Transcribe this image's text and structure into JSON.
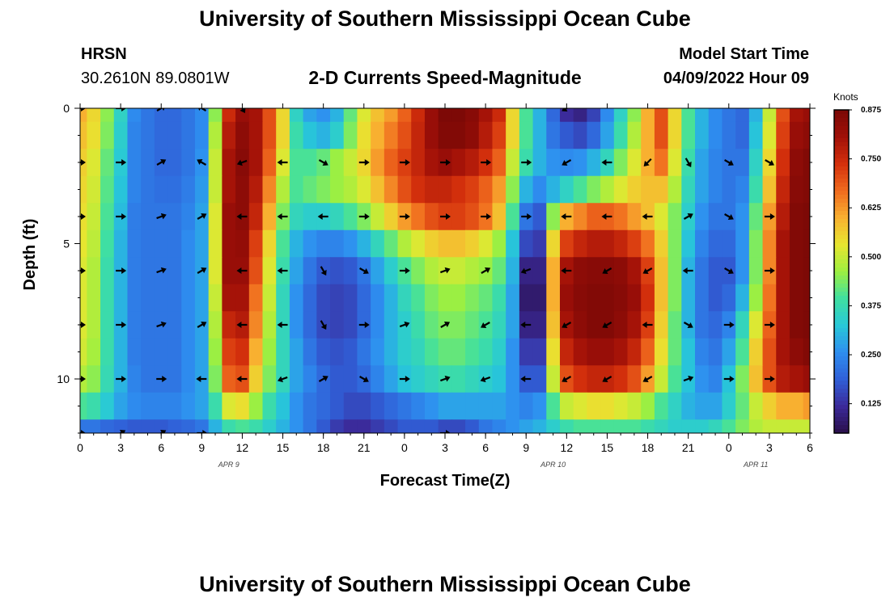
{
  "header": {
    "title": "University of Southern Mississippi Ocean Cube",
    "station": "HRSN",
    "coords": "30.2610N  89.0801W",
    "subtitle": "2-D Currents Speed-Magnitude",
    "start_label": "Model Start Time",
    "start_value": "04/09/2022 Hour 09"
  },
  "footer": {
    "title": "University of Southern Mississippi Ocean Cube"
  },
  "colors": {
    "palette": [
      "#2a0f4a",
      "#3b2a9a",
      "#3060d8",
      "#2e8ff0",
      "#28c8d8",
      "#40e0a0",
      "#9ef040",
      "#e8e630",
      "#f8b030",
      "#f06a1e",
      "#d4300c",
      "#a01008",
      "#7a0806"
    ]
  },
  "chart_data": {
    "type": "heatmap",
    "title": "2-D Currents Speed-Magnitude",
    "xlabel": "Forecast Time(Z)",
    "ylabel": "Depth (ft)",
    "x_ticks": [
      "0",
      "3",
      "6",
      "9",
      "12",
      "15",
      "18",
      "21",
      "0",
      "3",
      "6",
      "9",
      "12",
      "15",
      "18",
      "21",
      "0",
      "3",
      "6"
    ],
    "x_hours": [
      0,
      54
    ],
    "date_labels": [
      {
        "label": "APR 9",
        "hour": 11
      },
      {
        "label": "APR 10",
        "hour": 35
      },
      {
        "label": "APR 11",
        "hour": 50
      }
    ],
    "y_ticks": [
      "0",
      "5",
      "10"
    ],
    "y_tick_values": [
      0,
      5,
      10
    ],
    "ylim": [
      0,
      12
    ],
    "colorbar": {
      "label": "Knots",
      "min": 0.05,
      "max": 0.875,
      "ticks": [
        "0.875",
        "0.750",
        "0.625",
        "0.500",
        "0.375",
        "0.250",
        "0.125"
      ],
      "tick_values": [
        0.875,
        0.75,
        0.625,
        0.5,
        0.375,
        0.25,
        0.125
      ]
    },
    "column_hours": [
      0,
      1,
      2,
      3,
      4,
      5,
      6,
      7,
      8,
      9,
      10,
      11,
      12,
      13,
      14,
      15,
      16,
      17,
      18,
      19,
      20,
      21,
      22,
      23,
      24,
      25,
      26,
      27,
      28,
      29,
      30,
      31,
      32,
      33,
      34,
      35,
      36,
      37,
      38,
      39,
      40,
      41,
      42,
      43,
      44,
      45,
      46,
      47,
      48,
      49,
      50,
      51,
      52,
      53,
      54
    ],
    "row_depths": [
      0,
      1,
      2,
      3,
      4,
      5,
      6,
      7,
      8,
      9,
      10,
      11,
      12
    ],
    "speed_grid": [
      [
        0.6,
        0.55,
        0.45,
        0.35,
        0.25,
        0.22,
        0.2,
        0.2,
        0.22,
        0.25,
        0.45,
        0.75,
        0.82,
        0.8,
        0.7,
        0.55,
        0.35,
        0.28,
        0.26,
        0.3,
        0.42,
        0.52,
        0.58,
        0.62,
        0.68,
        0.75,
        0.82,
        0.87,
        0.87,
        0.85,
        0.8,
        0.75,
        0.55,
        0.4,
        0.3,
        0.2,
        0.12,
        0.1,
        0.15,
        0.25,
        0.35,
        0.45,
        0.6,
        0.7,
        0.55,
        0.4,
        0.3,
        0.25,
        0.22,
        0.2,
        0.3,
        0.5,
        0.7,
        0.8,
        0.82
      ],
      [
        0.58,
        0.54,
        0.44,
        0.34,
        0.24,
        0.22,
        0.2,
        0.2,
        0.22,
        0.25,
        0.48,
        0.78,
        0.84,
        0.8,
        0.7,
        0.55,
        0.38,
        0.32,
        0.3,
        0.34,
        0.44,
        0.54,
        0.6,
        0.65,
        0.7,
        0.76,
        0.82,
        0.86,
        0.86,
        0.84,
        0.78,
        0.72,
        0.55,
        0.4,
        0.3,
        0.22,
        0.18,
        0.16,
        0.2,
        0.28,
        0.38,
        0.48,
        0.6,
        0.7,
        0.55,
        0.4,
        0.3,
        0.25,
        0.22,
        0.2,
        0.32,
        0.52,
        0.72,
        0.82,
        0.84
      ],
      [
        0.56,
        0.52,
        0.42,
        0.33,
        0.24,
        0.22,
        0.2,
        0.2,
        0.22,
        0.26,
        0.5,
        0.8,
        0.85,
        0.8,
        0.68,
        0.52,
        0.4,
        0.4,
        0.42,
        0.46,
        0.5,
        0.55,
        0.62,
        0.68,
        0.72,
        0.76,
        0.8,
        0.82,
        0.8,
        0.78,
        0.74,
        0.68,
        0.5,
        0.38,
        0.3,
        0.26,
        0.25,
        0.26,
        0.3,
        0.36,
        0.44,
        0.52,
        0.6,
        0.66,
        0.52,
        0.38,
        0.28,
        0.24,
        0.22,
        0.22,
        0.35,
        0.55,
        0.74,
        0.84,
        0.86
      ],
      [
        0.55,
        0.51,
        0.41,
        0.32,
        0.24,
        0.22,
        0.21,
        0.21,
        0.23,
        0.27,
        0.5,
        0.8,
        0.84,
        0.78,
        0.64,
        0.48,
        0.4,
        0.42,
        0.44,
        0.46,
        0.48,
        0.52,
        0.58,
        0.64,
        0.7,
        0.74,
        0.76,
        0.76,
        0.74,
        0.72,
        0.68,
        0.62,
        0.45,
        0.3,
        0.25,
        0.3,
        0.35,
        0.4,
        0.44,
        0.48,
        0.52,
        0.56,
        0.58,
        0.58,
        0.48,
        0.36,
        0.28,
        0.24,
        0.22,
        0.24,
        0.38,
        0.58,
        0.76,
        0.85,
        0.86
      ],
      [
        0.54,
        0.5,
        0.4,
        0.31,
        0.23,
        0.22,
        0.22,
        0.22,
        0.24,
        0.28,
        0.52,
        0.82,
        0.84,
        0.76,
        0.6,
        0.44,
        0.36,
        0.34,
        0.34,
        0.36,
        0.4,
        0.44,
        0.5,
        0.56,
        0.62,
        0.66,
        0.7,
        0.72,
        0.72,
        0.7,
        0.66,
        0.58,
        0.4,
        0.22,
        0.18,
        0.45,
        0.6,
        0.64,
        0.68,
        0.68,
        0.66,
        0.62,
        0.58,
        0.52,
        0.44,
        0.34,
        0.26,
        0.22,
        0.22,
        0.26,
        0.42,
        0.62,
        0.78,
        0.86,
        0.87
      ],
      [
        0.53,
        0.49,
        0.39,
        0.3,
        0.23,
        0.22,
        0.22,
        0.22,
        0.25,
        0.28,
        0.52,
        0.82,
        0.83,
        0.72,
        0.55,
        0.4,
        0.3,
        0.26,
        0.24,
        0.24,
        0.26,
        0.3,
        0.36,
        0.42,
        0.48,
        0.52,
        0.56,
        0.58,
        0.58,
        0.56,
        0.52,
        0.46,
        0.32,
        0.16,
        0.14,
        0.55,
        0.72,
        0.76,
        0.78,
        0.78,
        0.76,
        0.72,
        0.66,
        0.56,
        0.44,
        0.32,
        0.24,
        0.2,
        0.2,
        0.26,
        0.44,
        0.64,
        0.8,
        0.86,
        0.87
      ],
      [
        0.52,
        0.48,
        0.38,
        0.3,
        0.23,
        0.22,
        0.22,
        0.22,
        0.25,
        0.28,
        0.52,
        0.82,
        0.82,
        0.7,
        0.52,
        0.38,
        0.28,
        0.22,
        0.18,
        0.17,
        0.18,
        0.22,
        0.28,
        0.34,
        0.4,
        0.44,
        0.48,
        0.5,
        0.5,
        0.48,
        0.46,
        0.42,
        0.3,
        0.1,
        0.1,
        0.6,
        0.8,
        0.84,
        0.85,
        0.85,
        0.84,
        0.8,
        0.72,
        0.58,
        0.44,
        0.3,
        0.22,
        0.18,
        0.18,
        0.26,
        0.44,
        0.64,
        0.8,
        0.86,
        0.87
      ],
      [
        0.52,
        0.48,
        0.38,
        0.3,
        0.23,
        0.22,
        0.22,
        0.22,
        0.25,
        0.28,
        0.5,
        0.8,
        0.8,
        0.66,
        0.5,
        0.36,
        0.26,
        0.2,
        0.16,
        0.15,
        0.16,
        0.2,
        0.25,
        0.3,
        0.36,
        0.4,
        0.44,
        0.46,
        0.46,
        0.44,
        0.42,
        0.38,
        0.28,
        0.08,
        0.08,
        0.6,
        0.82,
        0.85,
        0.86,
        0.86,
        0.85,
        0.82,
        0.74,
        0.58,
        0.44,
        0.3,
        0.22,
        0.18,
        0.2,
        0.3,
        0.46,
        0.66,
        0.8,
        0.86,
        0.87
      ],
      [
        0.52,
        0.48,
        0.38,
        0.3,
        0.23,
        0.22,
        0.22,
        0.22,
        0.25,
        0.28,
        0.48,
        0.76,
        0.78,
        0.64,
        0.48,
        0.36,
        0.26,
        0.2,
        0.16,
        0.15,
        0.16,
        0.2,
        0.25,
        0.3,
        0.34,
        0.38,
        0.42,
        0.44,
        0.44,
        0.42,
        0.4,
        0.36,
        0.28,
        0.1,
        0.1,
        0.58,
        0.8,
        0.84,
        0.86,
        0.86,
        0.84,
        0.8,
        0.72,
        0.56,
        0.42,
        0.3,
        0.22,
        0.2,
        0.24,
        0.36,
        0.52,
        0.68,
        0.8,
        0.86,
        0.87
      ],
      [
        0.51,
        0.47,
        0.38,
        0.3,
        0.23,
        0.22,
        0.22,
        0.22,
        0.25,
        0.28,
        0.46,
        0.72,
        0.74,
        0.6,
        0.46,
        0.36,
        0.28,
        0.22,
        0.18,
        0.17,
        0.18,
        0.22,
        0.26,
        0.3,
        0.34,
        0.36,
        0.4,
        0.42,
        0.42,
        0.4,
        0.38,
        0.34,
        0.26,
        0.14,
        0.14,
        0.54,
        0.76,
        0.8,
        0.82,
        0.82,
        0.8,
        0.76,
        0.68,
        0.54,
        0.42,
        0.32,
        0.24,
        0.22,
        0.28,
        0.4,
        0.56,
        0.7,
        0.8,
        0.84,
        0.86
      ],
      [
        0.48,
        0.45,
        0.37,
        0.3,
        0.24,
        0.22,
        0.22,
        0.22,
        0.25,
        0.28,
        0.44,
        0.68,
        0.7,
        0.56,
        0.44,
        0.36,
        0.28,
        0.24,
        0.2,
        0.18,
        0.18,
        0.2,
        0.24,
        0.28,
        0.32,
        0.34,
        0.36,
        0.38,
        0.38,
        0.36,
        0.34,
        0.32,
        0.26,
        0.18,
        0.18,
        0.5,
        0.7,
        0.74,
        0.76,
        0.76,
        0.74,
        0.7,
        0.62,
        0.5,
        0.4,
        0.32,
        0.26,
        0.24,
        0.32,
        0.44,
        0.58,
        0.7,
        0.78,
        0.8,
        0.82
      ],
      [
        0.4,
        0.38,
        0.33,
        0.28,
        0.25,
        0.24,
        0.24,
        0.24,
        0.26,
        0.28,
        0.38,
        0.52,
        0.54,
        0.46,
        0.38,
        0.32,
        0.26,
        0.22,
        0.2,
        0.18,
        0.16,
        0.16,
        0.18,
        0.2,
        0.22,
        0.24,
        0.26,
        0.28,
        0.28,
        0.28,
        0.28,
        0.28,
        0.26,
        0.24,
        0.26,
        0.4,
        0.5,
        0.52,
        0.54,
        0.54,
        0.52,
        0.5,
        0.46,
        0.4,
        0.35,
        0.3,
        0.28,
        0.28,
        0.34,
        0.42,
        0.5,
        0.56,
        0.6,
        0.6,
        0.62
      ],
      [
        0.22,
        0.22,
        0.2,
        0.19,
        0.18,
        0.18,
        0.18,
        0.19,
        0.2,
        0.22,
        0.3,
        0.38,
        0.4,
        0.38,
        0.34,
        0.3,
        0.26,
        0.22,
        0.18,
        0.14,
        0.12,
        0.12,
        0.14,
        0.16,
        0.18,
        0.18,
        0.18,
        0.16,
        0.16,
        0.18,
        0.22,
        0.24,
        0.26,
        0.28,
        0.3,
        0.34,
        0.38,
        0.4,
        0.4,
        0.4,
        0.4,
        0.4,
        0.38,
        0.36,
        0.34,
        0.34,
        0.34,
        0.36,
        0.4,
        0.44,
        0.48,
        0.5,
        0.5,
        0.5,
        0.5
      ]
    ],
    "arrow_hours": [
      0,
      3,
      6,
      9,
      12,
      15,
      18,
      21,
      24,
      27,
      30,
      33,
      36,
      39,
      42,
      45,
      48,
      51
    ],
    "arrow_depths": [
      0,
      2,
      4,
      6,
      8,
      10,
      12
    ],
    "arrow_angles_deg": [
      [
        0,
        0,
        30,
        150,
        300,
        null,
        null,
        null,
        null,
        null,
        null,
        null,
        210,
        null,
        null,
        null,
        null,
        null
      ],
      [
        0,
        0,
        30,
        150,
        200,
        180,
        330,
        0,
        0,
        0,
        0,
        0,
        210,
        180,
        225,
        300,
        330,
        330
      ],
      [
        0,
        0,
        20,
        30,
        180,
        180,
        180,
        0,
        0,
        0,
        0,
        0,
        180,
        180,
        180,
        30,
        330,
        0
      ],
      [
        0,
        0,
        20,
        30,
        180,
        180,
        300,
        330,
        0,
        20,
        30,
        200,
        180,
        210,
        210,
        180,
        330,
        0
      ],
      [
        0,
        0,
        20,
        30,
        180,
        180,
        300,
        0,
        20,
        30,
        210,
        180,
        210,
        210,
        180,
        330,
        0,
        0
      ],
      [
        0,
        0,
        0,
        180,
        180,
        200,
        30,
        330,
        0,
        20,
        200,
        180,
        210,
        210,
        210,
        20,
        0,
        0
      ],
      [
        0,
        30,
        30,
        0,
        null,
        null,
        null,
        null,
        null,
        0,
        null,
        null,
        null,
        null,
        null,
        null,
        null,
        null
      ]
    ]
  }
}
